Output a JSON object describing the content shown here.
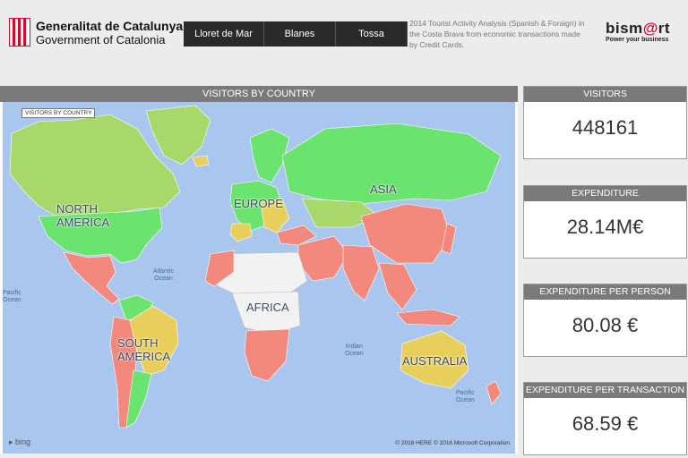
{
  "header": {
    "org_name_line1": "Generalitat de Catalunya",
    "org_name_line2": "Government of Catalonia",
    "tabs": [
      "Lloret de Mar",
      "Blanes",
      "Tossa"
    ],
    "description": "2014 Tourist Activity Analysis (Spanish & Foraign) in the Costa Brava from economic transactions made by Credit Cards.",
    "brand_name_a": "bism",
    "brand_name_b": "@",
    "brand_name_c": "rt",
    "brand_tagline": "Power your business"
  },
  "map": {
    "title": "VISITORS BY COUNTRY",
    "legend_tag": "VISITORS BY COUNTRY",
    "labels": {
      "north_america": [
        "NORTH",
        "AMERICA"
      ],
      "south_america": [
        "SOUTH",
        "AMERICA"
      ],
      "europe": "EUROPE",
      "asia": "ASIA",
      "africa": "AFRICA",
      "australia": "AUSTRALIA",
      "atlantic": [
        "Atlantic",
        "Ocean"
      ],
      "indian": [
        "Indian",
        "Ocean"
      ],
      "pacific_left": [
        "Pacific",
        "Ocean"
      ],
      "pacific_right": [
        "Pacific",
        "Ocean"
      ]
    },
    "provider": "bing",
    "copyright": "© 2016 HERE   © 2016 Microsoft Corporation",
    "colors": {
      "ocean": "#a9c7ee",
      "high": "#6be36f",
      "mid_high": "#a8d86a",
      "mid": "#e8cf5c",
      "low": "#f3887c",
      "none": "#f2f2f2"
    }
  },
  "kpis": [
    {
      "title": "VISITORS",
      "value": "448161"
    },
    {
      "title": "EXPENDITURE",
      "value": "28.14M€"
    },
    {
      "title": "EXPENDITURE PER PERSON",
      "value": "80.08 €"
    },
    {
      "title": "EXPENDITURE PER TRANSACTION",
      "value": "68.59 €"
    }
  ]
}
